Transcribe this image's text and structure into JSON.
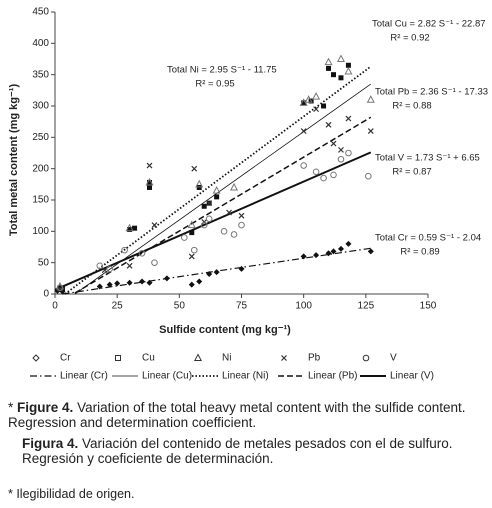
{
  "chart_data": {
    "type": "scatter",
    "x_label": "Sulfide content (mg kg⁻¹)",
    "y_label": "Total metal content (mg kg⁻¹)",
    "xlim": [
      0,
      150
    ],
    "xticks": [
      0,
      25,
      50,
      75,
      100,
      125,
      150
    ],
    "ylim": [
      0,
      450
    ],
    "yticks": [
      0,
      50,
      100,
      150,
      200,
      250,
      300,
      350,
      400,
      450
    ],
    "series": [
      {
        "name": "Cr",
        "marker": "diamond",
        "color": "#111111",
        "x": [
          1,
          2,
          3,
          18,
          22,
          25,
          30,
          35,
          38,
          45,
          55,
          58,
          62,
          65,
          75,
          100,
          105,
          110,
          112,
          115,
          118,
          127
        ],
        "values": [
          5,
          8,
          4,
          12,
          15,
          17,
          18,
          20,
          18,
          25,
          15,
          20,
          32,
          35,
          40,
          60,
          62,
          65,
          68,
          72,
          80,
          68
        ]
      },
      {
        "name": "Cu",
        "marker": "square",
        "color": "#111111",
        "x": [
          2,
          3,
          30,
          32,
          38,
          38,
          55,
          58,
          60,
          62,
          65,
          100,
          103,
          108,
          110,
          112,
          115,
          118
        ],
        "values": [
          10,
          8,
          103,
          105,
          170,
          178,
          98,
          170,
          140,
          145,
          155,
          305,
          308,
          300,
          360,
          350,
          345,
          365
        ]
      },
      {
        "name": "Ni",
        "marker": "triangle",
        "color": "#777777",
        "x": [
          2,
          30,
          38,
          55,
          58,
          65,
          72,
          100,
          102,
          105,
          110,
          115,
          118,
          127
        ],
        "values": [
          12,
          105,
          178,
          110,
          175,
          165,
          170,
          305,
          310,
          315,
          370,
          375,
          355,
          310
        ]
      },
      {
        "name": "Pb",
        "marker": "cross",
        "color": "#333333",
        "x": [
          2,
          20,
          30,
          38,
          40,
          55,
          56,
          60,
          62,
          70,
          75,
          100,
          105,
          110,
          112,
          115,
          118,
          127
        ],
        "values": [
          8,
          38,
          45,
          205,
          110,
          60,
          200,
          115,
          145,
          130,
          125,
          260,
          295,
          270,
          240,
          230,
          280,
          260
        ]
      },
      {
        "name": "V",
        "marker": "circle",
        "color": "#777777",
        "x": [
          2,
          18,
          22,
          28,
          35,
          40,
          52,
          56,
          60,
          62,
          68,
          72,
          75,
          100,
          105,
          108,
          112,
          115,
          118,
          126
        ],
        "values": [
          10,
          45,
          40,
          70,
          65,
          50,
          90,
          70,
          110,
          120,
          100,
          95,
          110,
          205,
          195,
          185,
          190,
          215,
          225,
          188
        ]
      }
    ],
    "trendlines": [
      {
        "name": "Linear (Cr)",
        "style": "dashdot",
        "width": 1.2,
        "x": [
          3,
          127
        ],
        "values": [
          0,
          73
        ],
        "equation": "Total Cr = 0.59 S⁻¹ - 2.04",
        "r2": "R² = 0.89"
      },
      {
        "name": "Linear (Cu)",
        "style": "solid",
        "width": 0.8,
        "x": [
          8,
          127
        ],
        "values": [
          0,
          335
        ],
        "equation": "Total Cu = 2.82 S⁻¹ - 22.87",
        "r2": "R² = 0.92"
      },
      {
        "name": "Linear (Ni)",
        "style": "dotted",
        "width": 1.8,
        "x": [
          4,
          127
        ],
        "values": [
          0,
          363
        ],
        "equation": "Total Ni = 2.95 S⁻¹ - 11.75",
        "r2": "R² = 0.95"
      },
      {
        "name": "Linear (Pb)",
        "style": "dashed",
        "width": 1.5,
        "x": [
          8,
          127
        ],
        "values": [
          1.5,
          282
        ],
        "equation": "Total Pb = 2.36 S⁻¹ - 17.33",
        "r2": "R² = 0.88"
      },
      {
        "name": "Linear (V)",
        "style": "solid",
        "width": 2,
        "x": [
          0,
          127
        ],
        "values": [
          6.65,
          226
        ],
        "equation": "Total V = 1.73 S⁻¹ + 6.65",
        "r2": "R² = 0.87"
      }
    ]
  },
  "caption_marker": "*",
  "caption_en": {
    "label": "Figure 4.",
    "text": "Variation of the total heavy metal content with the sulfide content. Regression and determination coefficient."
  },
  "caption_es": {
    "label": "Figura 4.",
    "text": "Variación del contenido de metales pesados con el de sulfuro. Regresión y coeficiente de determinación."
  },
  "footnote": "* Ilegibilidad de origen."
}
